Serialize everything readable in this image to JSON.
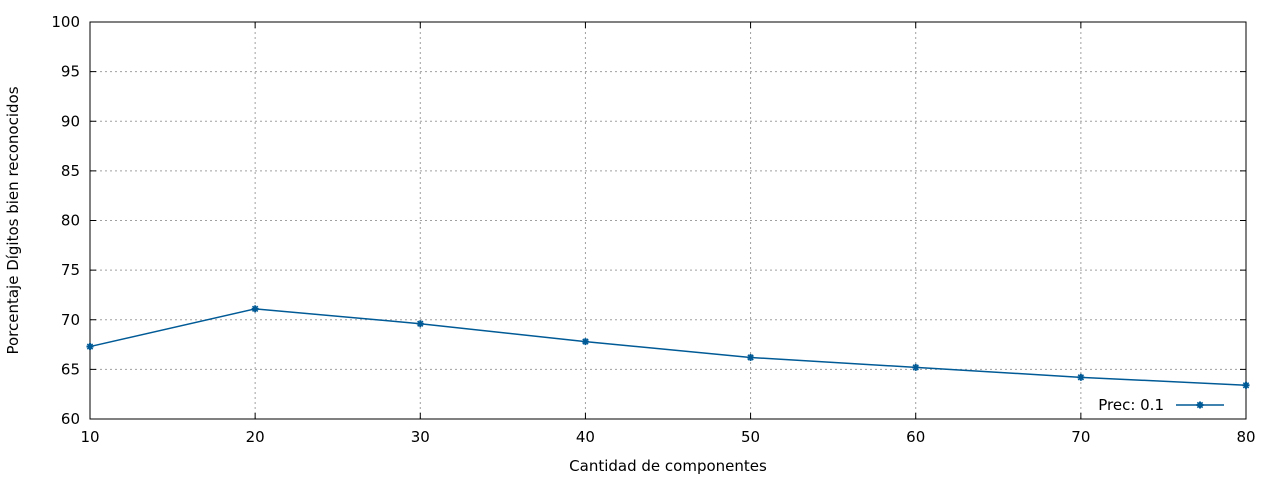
{
  "chart_data": {
    "type": "line",
    "title": "",
    "xlabel": "Cantidad de componentes",
    "ylabel": "Porcentaje Dígitos bien reconocidos",
    "xlim": [
      10,
      80
    ],
    "ylim": [
      60,
      100
    ],
    "x_ticks": [
      "10",
      "20",
      "30",
      "40",
      "50",
      "60",
      "70",
      "80"
    ],
    "y_ticks": [
      "60",
      "65",
      "70",
      "75",
      "80",
      "85",
      "90",
      "95",
      "100"
    ],
    "grid": true,
    "legend_position": "bottom-right",
    "series": [
      {
        "name": "Prec: 0.1",
        "color": "#005a96",
        "marker": "star",
        "x": [
          10,
          20,
          30,
          40,
          50,
          60,
          70,
          80
        ],
        "y": [
          67.3,
          71.1,
          69.6,
          67.8,
          66.2,
          65.2,
          64.2,
          63.4
        ]
      }
    ]
  }
}
